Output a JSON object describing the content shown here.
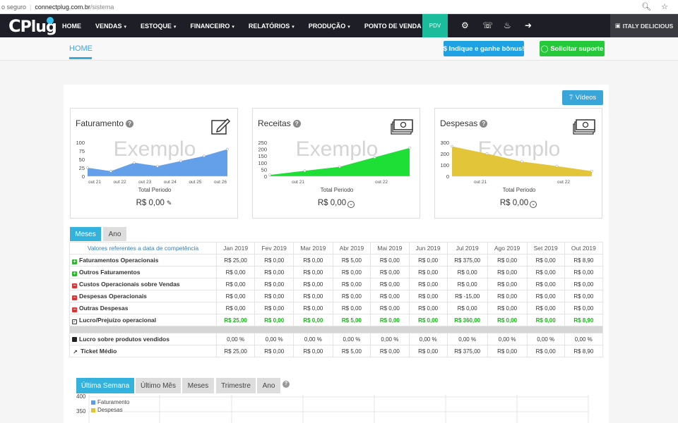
{
  "browser": {
    "security": "o seguro",
    "url_host": "connectplug.com.br",
    "url_path": "/sistema"
  },
  "nav": {
    "logo": "Plug",
    "logo_c": "C",
    "items": [
      {
        "label": "HOME",
        "caret": false
      },
      {
        "label": "VENDAS",
        "caret": true
      },
      {
        "label": "ESTOQUE",
        "caret": true
      },
      {
        "label": "FINANCEIRO",
        "caret": true
      },
      {
        "label": "RELATÓRIOS",
        "caret": true
      },
      {
        "label": "PRODUÇÃO",
        "caret": true
      },
      {
        "label": "PONTO DE VENDA",
        "caret": true
      }
    ],
    "pdv": "PDV",
    "store": "ITALY DELICIOUS",
    "accent": "#1abc9c"
  },
  "subheader": {
    "home": "HOME",
    "indique": "$ Indique e ganhe bônus!",
    "suporte": "Solicitar suporte"
  },
  "videos_label": "Vídeos",
  "cards": [
    {
      "title": "Faturamento",
      "watermark": "Exemplo",
      "total": "R$ 0,00",
      "xlabel": "Total Periodo",
      "color": "#5b9be8",
      "yticks": [
        "100",
        "75",
        "50",
        "25",
        "0"
      ],
      "xticks": [
        "out 21",
        "out 22",
        "out 23",
        "out 24",
        "out 25",
        "out 26"
      ],
      "values": [
        25,
        15,
        40,
        30,
        45,
        60,
        80
      ],
      "ymax": 100
    },
    {
      "title": "Receitas",
      "watermark": "Exemplo",
      "total": "R$ 0,00",
      "xlabel": "Total Periodo",
      "color": "#12dd2b",
      "yticks": [
        "250",
        "200",
        "150",
        "100",
        "50",
        "0"
      ],
      "xticks": [
        "out 21",
        "out 22"
      ],
      "values": [
        10,
        40,
        70,
        140,
        210
      ],
      "ymax": 250
    },
    {
      "title": "Despesas",
      "watermark": "Exemplo",
      "total": "R$ 0,00",
      "xlabel": "Total Periodo",
      "color": "#e2c22f",
      "yticks": [
        "300",
        "200",
        "100",
        "0"
      ],
      "xticks": [
        "out 21",
        "out 22"
      ],
      "values": [
        265,
        200,
        130,
        90,
        45
      ],
      "ymax": 300
    }
  ],
  "period_tabs": [
    "Meses",
    "Ano"
  ],
  "table": {
    "header_label": "Valores referentes a data de competência",
    "months": [
      "Jan 2019",
      "Fev 2019",
      "Mar 2019",
      "Abr 2019",
      "Mai 2019",
      "Jun 2019",
      "Jul 2019",
      "Ago 2019",
      "Set 2019",
      "Out 2019"
    ],
    "rows": [
      {
        "icon": "plus",
        "label": "Faturamentos Operacionais",
        "values": [
          "R$ 25,00",
          "R$ 0,00",
          "R$ 0,00",
          "R$ 5,00",
          "R$ 0,00",
          "R$ 0,00",
          "R$ 375,00",
          "R$ 0,00",
          "R$ 0,00",
          "R$ 8,90"
        ]
      },
      {
        "icon": "plus",
        "label": "Outros Faturamentos",
        "values": [
          "R$ 0,00",
          "R$ 0,00",
          "R$ 0,00",
          "R$ 0,00",
          "R$ 0,00",
          "R$ 0,00",
          "R$ 0,00",
          "R$ 0,00",
          "R$ 0,00",
          "R$ 0,00"
        ]
      },
      {
        "icon": "minus",
        "label": "Custos Operacionais sobre Vendas",
        "values": [
          "R$ 0,00",
          "R$ 0,00",
          "R$ 0,00",
          "R$ 0,00",
          "R$ 0,00",
          "R$ 0,00",
          "R$ 0,00",
          "R$ 0,00",
          "R$ 0,00",
          "R$ 0,00"
        ]
      },
      {
        "icon": "minus",
        "label": "Despesas Operacionais",
        "values": [
          "R$ 0,00",
          "R$ 0,00",
          "R$ 0,00",
          "R$ 0,00",
          "R$ 0,00",
          "R$ 0,00",
          "R$ -15,00",
          "R$ 0,00",
          "R$ 0,00",
          "R$ 0,00"
        ]
      },
      {
        "icon": "minus",
        "label": "Outras Despesas",
        "values": [
          "R$ 0,00",
          "R$ 0,00",
          "R$ 0,00",
          "R$ 0,00",
          "R$ 0,00",
          "R$ 0,00",
          "R$ 0,00",
          "R$ 0,00",
          "R$ 0,00",
          "R$ 0,00"
        ]
      }
    ],
    "lucro": {
      "label": "Lucro/Prejuízo operacional",
      "values": [
        "R$ 25,00",
        "R$ 0,00",
        "R$ 0,00",
        "R$ 5,00",
        "R$ 0,00",
        "R$ 0,00",
        "R$ 360,00",
        "R$ 0,00",
        "R$ 0,00",
        "R$ 8,90"
      ]
    },
    "margem": {
      "label": "Lucro sobre produtos vendidos",
      "values": [
        "0,00 %",
        "0,00 %",
        "0,00 %",
        "0,00 %",
        "0,00 %",
        "0,00 %",
        "0,00 %",
        "0,00 %",
        "0,00 %",
        "0,00 %"
      ]
    },
    "ticket": {
      "label": "Ticket Médio",
      "values": [
        "R$ 25,00",
        "R$ 0,00",
        "R$ 0,00",
        "R$ 5,00",
        "R$ 0,00",
        "R$ 0,00",
        "R$ 375,00",
        "R$ 0,00",
        "R$ 0,00",
        "R$ 8,90"
      ]
    },
    "positive_color": "#19b319"
  },
  "bottom_tabs": [
    "Última Semana",
    "Último Mês",
    "Meses",
    "Trimestre",
    "Ano"
  ],
  "bottom_chart": {
    "yticks": [
      "400",
      "350"
    ],
    "legend": [
      {
        "name": "Faturamento",
        "color": "#5b9be8"
      },
      {
        "name": "Despesas",
        "color": "#e2c22f"
      }
    ]
  }
}
